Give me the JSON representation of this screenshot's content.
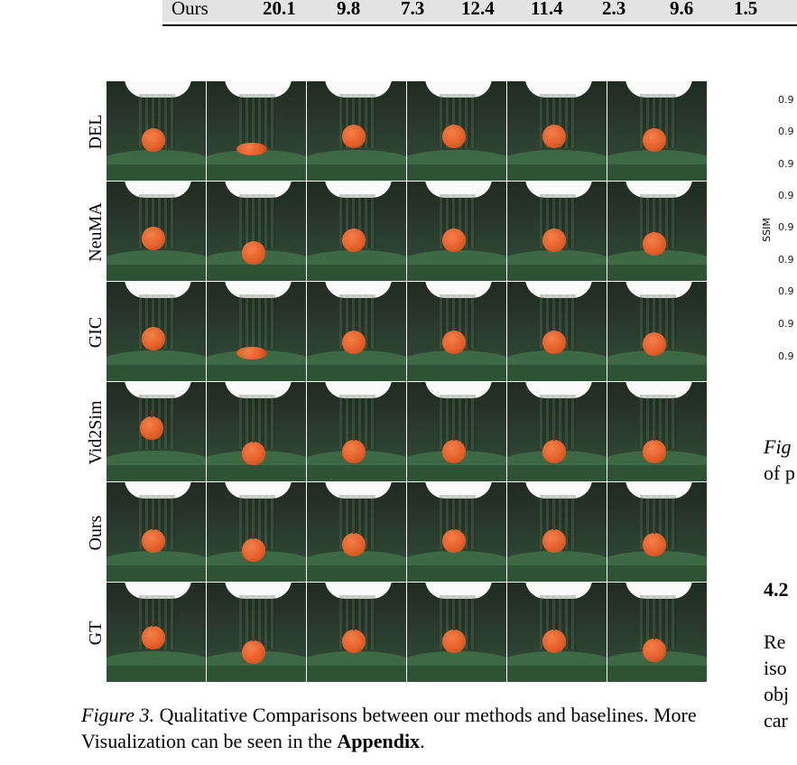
{
  "table_fragment": {
    "row_label": "Ours",
    "values": [
      "20.1",
      "9.8",
      "7.3",
      "12.4",
      "11.4",
      "2.3",
      "9.6",
      "1.5"
    ]
  },
  "figure": {
    "row_labels": [
      "DEL",
      "NeuMA",
      "GIC",
      "Vid2Sim",
      "Ours",
      "GT"
    ],
    "caption_label": "Figure 3.",
    "caption_text": " Qualitative Comparisons between our methods and baselines. More Visualization can be seen in the ",
    "caption_bold": "Appendix",
    "caption_end": "."
  },
  "side_plot": {
    "ylabel": "SSIM",
    "ticks": [
      "0.9",
      "0.9",
      "0.9",
      "0.9",
      "0.9",
      "0.9",
      "0.9",
      "0.9",
      "0.9"
    ]
  },
  "right_column": {
    "caption_line1": "Fig",
    "caption_line2": "of p",
    "section_heading": "4.2",
    "body_lines": [
      "Re",
      "iso",
      "obj",
      "car"
    ]
  }
}
